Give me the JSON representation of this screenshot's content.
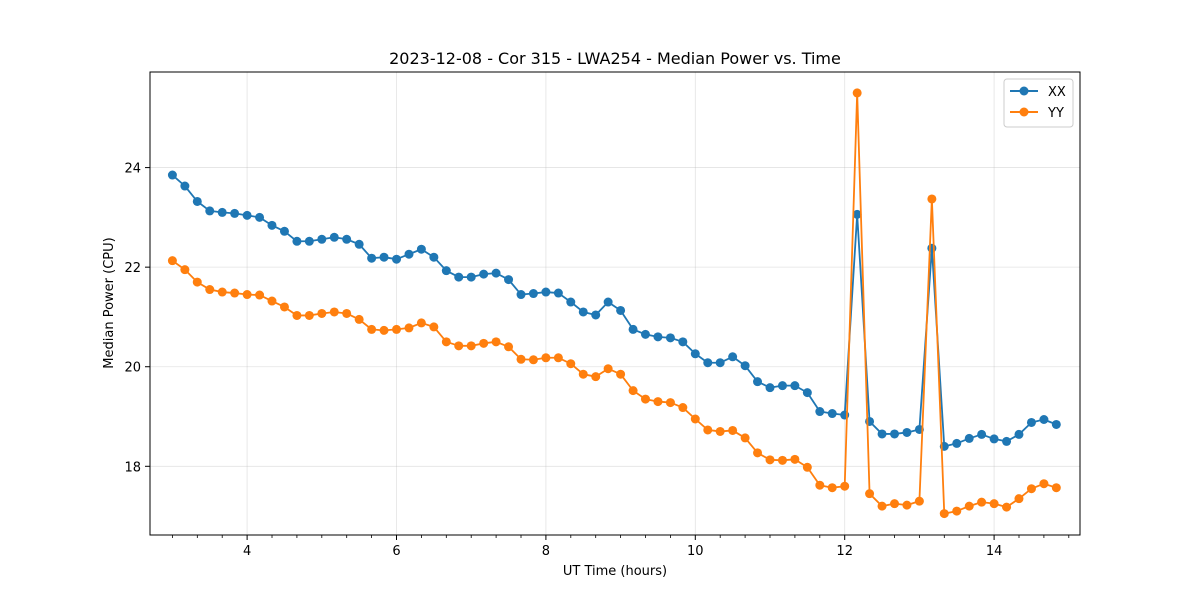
{
  "chart_data": {
    "type": "line",
    "title": "2023-12-08 - Cor 315 - LWA254 - Median Power vs. Time",
    "xlabel": "UT Time (hours)",
    "ylabel": "Median Power (CPU)",
    "xlim": [
      2.7,
      15.15
    ],
    "ylim": [
      16.62,
      25.92
    ],
    "xticks": [
      4,
      6,
      8,
      10,
      12,
      14
    ],
    "xtick_labels": [
      "4",
      "6",
      "8",
      "10",
      "12",
      "14"
    ],
    "yticks": [
      18,
      20,
      22,
      24
    ],
    "ytick_labels": [
      "18",
      "20",
      "22",
      "24"
    ],
    "grid": true,
    "legend_position": "top-right",
    "x": [
      3.0,
      3.167,
      3.333,
      3.5,
      3.667,
      3.833,
      4.0,
      4.167,
      4.333,
      4.5,
      4.667,
      4.833,
      5.0,
      5.167,
      5.333,
      5.5,
      5.667,
      5.833,
      6.0,
      6.167,
      6.333,
      6.5,
      6.667,
      6.833,
      7.0,
      7.167,
      7.333,
      7.5,
      7.667,
      7.833,
      8.0,
      8.167,
      8.333,
      8.5,
      8.667,
      8.833,
      9.0,
      9.167,
      9.333,
      9.5,
      9.667,
      9.833,
      10.0,
      10.167,
      10.333,
      10.5,
      10.667,
      10.833,
      11.0,
      11.167,
      11.333,
      11.5,
      11.667,
      11.833,
      12.0,
      12.167,
      12.333,
      12.5,
      12.667,
      12.833,
      13.0,
      13.167,
      13.333,
      13.5,
      13.667,
      13.833,
      14.0,
      14.167,
      14.333,
      14.5,
      14.667,
      14.833
    ],
    "series": [
      {
        "name": "XX",
        "color": "#1f77b4",
        "values": [
          23.85,
          23.63,
          23.32,
          23.13,
          23.1,
          23.08,
          23.04,
          23.0,
          22.84,
          22.72,
          22.52,
          22.52,
          22.56,
          22.6,
          22.56,
          22.46,
          22.18,
          22.2,
          22.16,
          22.26,
          22.36,
          22.2,
          21.93,
          21.8,
          21.8,
          21.86,
          21.88,
          21.75,
          21.45,
          21.47,
          21.5,
          21.48,
          21.3,
          21.1,
          21.04,
          21.3,
          21.13,
          20.75,
          20.65,
          20.6,
          20.58,
          20.5,
          20.26,
          20.08,
          20.08,
          20.2,
          20.02,
          19.7,
          19.58,
          19.62,
          19.62,
          19.48,
          19.1,
          19.06,
          19.03,
          23.06,
          18.9,
          18.65,
          18.65,
          18.68,
          18.74,
          22.38,
          18.4,
          18.46,
          18.56,
          18.64,
          18.55,
          18.5,
          18.64,
          18.88,
          18.94,
          18.84
        ]
      },
      {
        "name": "YY",
        "color": "#ff7f0e",
        "values": [
          22.13,
          21.95,
          21.7,
          21.55,
          21.5,
          21.48,
          21.45,
          21.44,
          21.32,
          21.2,
          21.03,
          21.03,
          21.07,
          21.1,
          21.07,
          20.95,
          20.75,
          20.73,
          20.75,
          20.78,
          20.88,
          20.8,
          20.5,
          20.42,
          20.42,
          20.47,
          20.5,
          20.4,
          20.15,
          20.14,
          20.18,
          20.18,
          20.06,
          19.85,
          19.8,
          19.96,
          19.85,
          19.52,
          19.35,
          19.3,
          19.28,
          19.18,
          18.95,
          18.73,
          18.7,
          18.72,
          18.57,
          18.27,
          18.13,
          18.12,
          18.14,
          17.98,
          17.62,
          17.57,
          17.6,
          25.5,
          17.45,
          17.2,
          17.25,
          17.22,
          17.3,
          23.37,
          17.05,
          17.1,
          17.2,
          17.28,
          17.25,
          17.18,
          17.35,
          17.55,
          17.65,
          17.57
        ]
      }
    ]
  }
}
